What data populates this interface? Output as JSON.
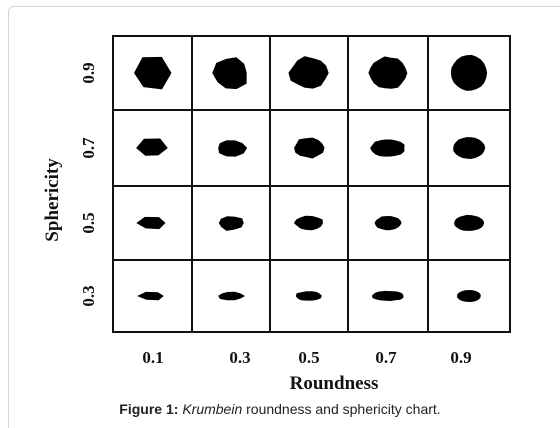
{
  "figure": {
    "y_axis": {
      "title": "Sphericity",
      "labels": [
        "0.9",
        "0.7",
        "0.5",
        "0.3"
      ]
    },
    "x_axis": {
      "title": "Roundness",
      "labels": [
        "0.1",
        "0.3",
        "0.5",
        "0.7",
        "0.9"
      ]
    },
    "caption": {
      "label": "Figure 1:",
      "name": "Krumbein",
      "text": "roundness and sphericity chart."
    }
  }
}
